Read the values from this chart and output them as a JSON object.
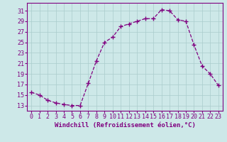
{
  "x": [
    0,
    1,
    2,
    3,
    4,
    5,
    6,
    7,
    8,
    9,
    10,
    11,
    12,
    13,
    14,
    15,
    16,
    17,
    18,
    19,
    20,
    21,
    22,
    23
  ],
  "y": [
    15.5,
    15.0,
    14.0,
    13.5,
    13.2,
    13.0,
    13.0,
    17.2,
    21.5,
    25.0,
    26.0,
    28.0,
    28.5,
    29.0,
    29.5,
    29.5,
    31.2,
    31.0,
    29.3,
    29.0,
    24.5,
    20.5,
    19.0,
    16.8
  ],
  "color": "#800080",
  "marker": "+",
  "markersize": 4,
  "linewidth": 0.9,
  "linestyle": "--",
  "xlabel": "Windchill (Refroidissement éolien,°C)",
  "xlabel_fontsize": 6.5,
  "xtick_labels": [
    "0",
    "1",
    "2",
    "3",
    "4",
    "5",
    "6",
    "7",
    "8",
    "9",
    "10",
    "11",
    "12",
    "13",
    "14",
    "15",
    "16",
    "17",
    "18",
    "19",
    "20",
    "21",
    "22",
    "23"
  ],
  "xticks": [
    0,
    1,
    2,
    3,
    4,
    5,
    6,
    7,
    8,
    9,
    10,
    11,
    12,
    13,
    14,
    15,
    16,
    17,
    18,
    19,
    20,
    21,
    22,
    23
  ],
  "ytick_labels": [
    "13",
    "15",
    "17",
    "19",
    "21",
    "23",
    "25",
    "27",
    "29",
    "31"
  ],
  "yticks": [
    13,
    15,
    17,
    19,
    21,
    23,
    25,
    27,
    29,
    31
  ],
  "ylim": [
    12.0,
    32.5
  ],
  "xlim": [
    -0.5,
    23.5
  ],
  "tick_fontsize": 6,
  "background_color": "#cde8e8",
  "grid_color": "#aacccc",
  "spine_color": "#800080"
}
